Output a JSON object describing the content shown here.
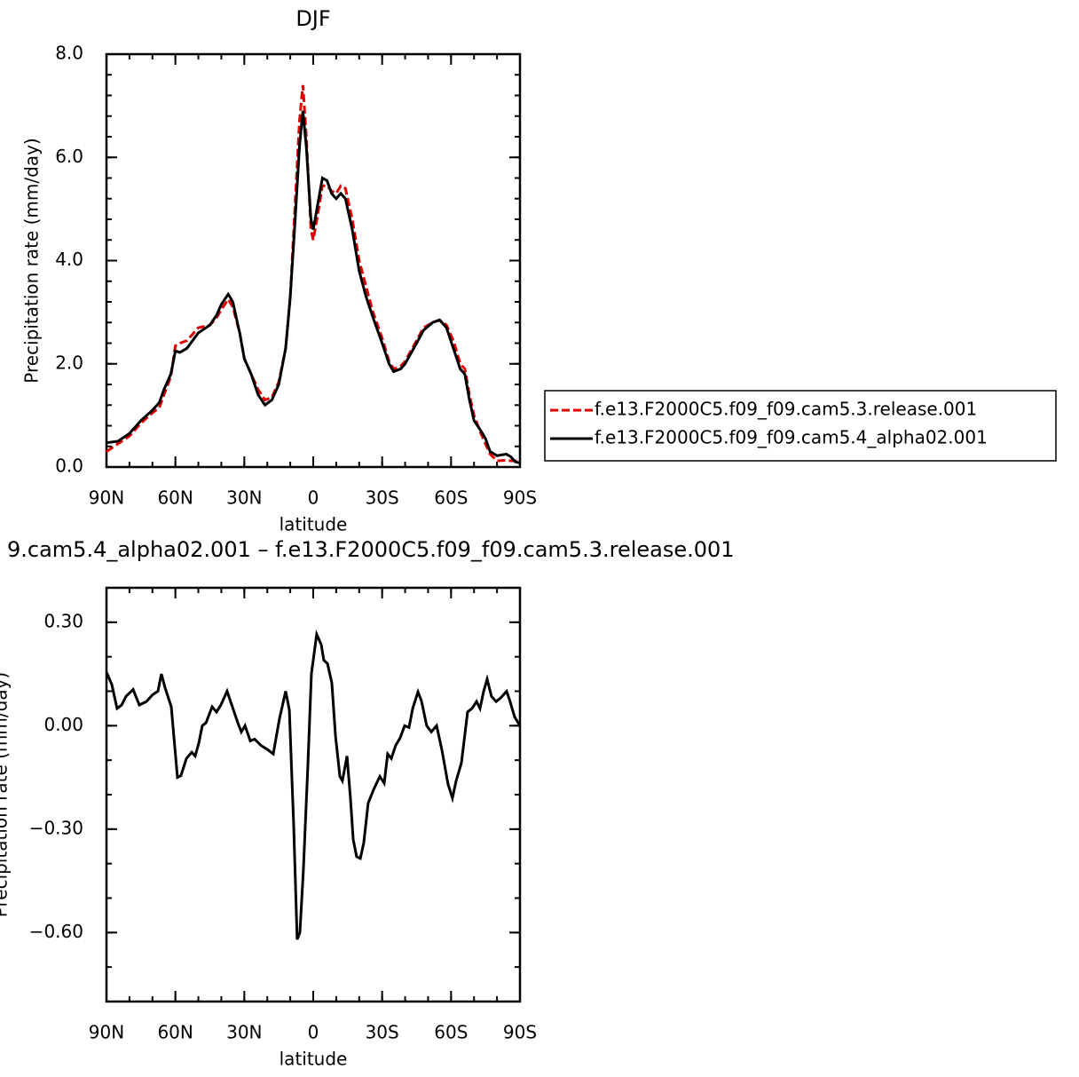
{
  "chart_data": [
    {
      "type": "line",
      "title": "DJF",
      "xlabel": "latitude",
      "ylabel": "Precipitation rate (mm/day)",
      "xlim": [
        90,
        -90
      ],
      "xticks": [
        {
          "value": 90,
          "label": "90N"
        },
        {
          "value": 60,
          "label": "60N"
        },
        {
          "value": 30,
          "label": "30N"
        },
        0,
        {
          "value": -30,
          "label": "30S"
        },
        {
          "value": -60,
          "label": "60S"
        },
        {
          "value": -90,
          "label": "90S"
        }
      ],
      "ylim": [
        0,
        8
      ],
      "yticks": [
        {
          "value": 0,
          "label": "0.0"
        },
        {
          "value": 2,
          "label": "2.0"
        },
        {
          "value": 4,
          "label": "4.0"
        },
        {
          "value": 6,
          "label": "6.0"
        },
        {
          "value": 8,
          "label": "8.0"
        }
      ],
      "legend": "right",
      "x": [
        90,
        85,
        80,
        75,
        70,
        67,
        65,
        62,
        60,
        58,
        55,
        50,
        45,
        42,
        40,
        37,
        35,
        32,
        30,
        27,
        24,
        21,
        18,
        15,
        12,
        10,
        8,
        6,
        4.5,
        3,
        1,
        0,
        -2,
        -4,
        -6,
        -8,
        -10,
        -12,
        -14,
        -17,
        -20,
        -23,
        -26,
        -30,
        -33,
        -35,
        -38,
        -40,
        -45,
        -48,
        -52,
        -55,
        -58,
        -61,
        -64,
        -66,
        -68,
        -70,
        -73,
        -75,
        -77,
        -80,
        -84,
        -86,
        -88,
        -90
      ],
      "series": [
        {
          "name": "f.e13.F2000C5.f09_f09.cam5.3.release.001",
          "color": "#e00000",
          "linestyle": "dashed",
          "values": [
            0.3,
            0.45,
            0.6,
            0.85,
            1.05,
            1.15,
            1.4,
            1.75,
            2.35,
            2.4,
            2.45,
            2.7,
            2.75,
            2.9,
            3.05,
            3.25,
            3.1,
            2.6,
            2.1,
            1.8,
            1.5,
            1.3,
            1.35,
            1.65,
            2.3,
            3.3,
            5.0,
            6.7,
            7.4,
            6.4,
            4.6,
            4.4,
            4.9,
            5.45,
            5.45,
            5.35,
            5.3,
            5.45,
            5.4,
            4.8,
            4.0,
            3.5,
            3.0,
            2.5,
            2.05,
            1.9,
            1.95,
            2.05,
            2.45,
            2.7,
            2.8,
            2.85,
            2.75,
            2.45,
            2.0,
            1.9,
            1.4,
            1.0,
            0.65,
            0.45,
            0.25,
            0.12,
            0.13,
            0.12,
            0.12,
            0.1
          ]
        },
        {
          "name": "f.e13.F2000C5.f09_f09.cam5.4_alpha02.001",
          "color": "#000000",
          "linestyle": "solid",
          "values": [
            0.47,
            0.5,
            0.65,
            0.9,
            1.1,
            1.25,
            1.5,
            1.8,
            2.25,
            2.22,
            2.3,
            2.6,
            2.75,
            2.95,
            3.15,
            3.35,
            3.2,
            2.6,
            2.1,
            1.8,
            1.4,
            1.2,
            1.3,
            1.6,
            2.3,
            3.3,
            4.7,
            6.2,
            6.9,
            6.2,
            4.8,
            4.6,
            5.1,
            5.6,
            5.55,
            5.3,
            5.2,
            5.3,
            5.2,
            4.6,
            3.8,
            3.3,
            2.9,
            2.4,
            2.0,
            1.85,
            1.9,
            2.0,
            2.4,
            2.65,
            2.8,
            2.85,
            2.7,
            2.3,
            1.9,
            1.8,
            1.3,
            0.9,
            0.7,
            0.55,
            0.3,
            0.22,
            0.25,
            0.2,
            0.1,
            0.08
          ]
        }
      ]
    },
    {
      "type": "line",
      "title": "9.cam5.4_alpha02.001 – f.e13.F2000C5.f09_f09.cam5.3.release.001",
      "xlabel": "latitude",
      "ylabel": "Precipitation rate (mm/day)",
      "xlim": [
        90,
        -90
      ],
      "xticks": [
        {
          "value": 90,
          "label": "90N"
        },
        {
          "value": 60,
          "label": "60N"
        },
        {
          "value": 30,
          "label": "30N"
        },
        0,
        {
          "value": -30,
          "label": "30S"
        },
        {
          "value": -60,
          "label": "60S"
        },
        {
          "value": -90,
          "label": "90S"
        }
      ],
      "ylim": [
        -0.8,
        0.4
      ],
      "yticks": [
        {
          "value": 0.3,
          "label": "0.30"
        },
        {
          "value": 0,
          "label": "0.00"
        },
        {
          "value": -0.3,
          "label": "−0.30"
        },
        {
          "value": -0.6,
          "label": "−0.60"
        }
      ],
      "x": [
        90,
        87.7,
        85.4,
        83.4,
        81.5,
        78.4,
        75.7,
        72.6,
        69.9,
        67.6,
        66.1,
        64.5,
        61.8,
        59.1,
        57.6,
        55.2,
        52.9,
        51.4,
        49.8,
        48.3,
        46.7,
        44.0,
        42.1,
        40.2,
        37.5,
        35.2,
        32.8,
        31.3,
        29.7,
        27.4,
        25.5,
        22.8,
        19.7,
        17.4,
        14.7,
        12.0,
        10.4,
        8.5,
        7.0,
        5.8,
        4.3,
        2.3,
        0.8,
        -1.5,
        -3.5,
        -4.6,
        -6.2,
        -8.1,
        -9.7,
        -11.6,
        -12.7,
        -14.7,
        -16.2,
        -17.4,
        -18.9,
        -20.5,
        -22.0,
        -23.9,
        -26.3,
        -29.0,
        -30.9,
        -32.4,
        -34.0,
        -35.9,
        -37.8,
        -39.8,
        -41.7,
        -43.3,
        -45.6,
        -47.1,
        -49.4,
        -51.4,
        -53.7,
        -56.0,
        -58.7,
        -60.6,
        -62.2,
        -64.5,
        -67.2,
        -69.1,
        -71.1,
        -72.6,
        -74.2,
        -75.7,
        -77.6,
        -79.6,
        -81.5,
        -84.2,
        -85.7,
        -87.7,
        -90
      ],
      "series": [
        {
          "color": "#000000",
          "linestyle": "solid",
          "values": [
            0.155,
            0.12,
            0.05,
            0.06,
            0.085,
            0.105,
            0.06,
            0.07,
            0.09,
            0.1,
            0.15,
            0.11,
            0.055,
            -0.15,
            -0.145,
            -0.095,
            -0.077,
            -0.088,
            -0.05,
            0.0,
            0.008,
            0.055,
            0.04,
            0.06,
            0.1,
            0.055,
            0.008,
            -0.018,
            0.0,
            -0.044,
            -0.039,
            -0.057,
            -0.07,
            -0.082,
            0.02,
            0.1,
            0.046,
            -0.29,
            -0.62,
            -0.6,
            -0.42,
            -0.11,
            0.15,
            0.265,
            0.235,
            0.19,
            0.18,
            0.124,
            -0.03,
            -0.147,
            -0.16,
            -0.088,
            -0.21,
            -0.33,
            -0.38,
            -0.385,
            -0.34,
            -0.225,
            -0.185,
            -0.147,
            -0.167,
            -0.082,
            -0.095,
            -0.057,
            -0.036,
            0.0,
            -0.005,
            0.05,
            0.098,
            0.072,
            0.0,
            -0.018,
            0.0,
            -0.07,
            -0.17,
            -0.21,
            -0.16,
            -0.108,
            0.04,
            0.05,
            0.07,
            0.05,
            0.1,
            0.135,
            0.085,
            0.07,
            0.08,
            0.1,
            0.07,
            0.025,
            0.0
          ]
        }
      ]
    }
  ]
}
